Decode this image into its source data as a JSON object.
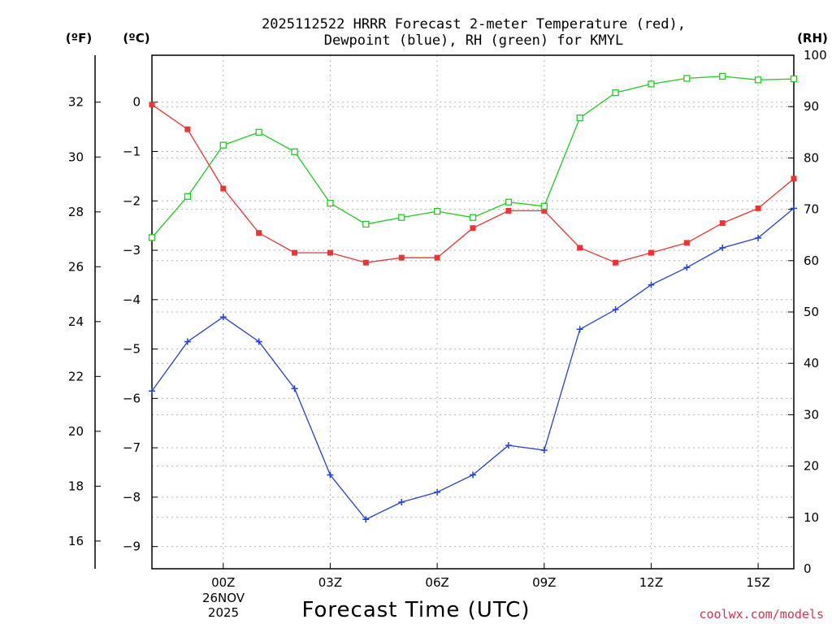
{
  "chart_data": {
    "type": "line",
    "title_line1": "2025112522 HRRR Forecast 2-meter Temperature (red),",
    "title_line2": "Dewpoint (blue), RH (green) for KMYL",
    "units": {
      "fahrenheit": "(ºF)",
      "celsius": "(ºC)",
      "rh": "(RH)"
    },
    "xlabel": "Forecast Time (UTC)",
    "x_date_label": [
      "26NOV",
      "2025"
    ],
    "credit": "coolwx.com/models",
    "x_hours": [
      -2,
      -1,
      0,
      1,
      2,
      3,
      4,
      5,
      6,
      7,
      8,
      9,
      10,
      11,
      12,
      13,
      14,
      15,
      16
    ],
    "x_range": [
      -2,
      16
    ],
    "x_ticks": [
      {
        "hour": 0,
        "label": "00Z"
      },
      {
        "hour": 3,
        "label": "03Z"
      },
      {
        "hour": 6,
        "label": "06Z"
      },
      {
        "hour": 9,
        "label": "09Z"
      },
      {
        "hour": 12,
        "label": "12Z"
      },
      {
        "hour": 15,
        "label": "15Z"
      }
    ],
    "y_celsius_range": [
      -9.45,
      0.95
    ],
    "y_celsius_ticks": [
      "0",
      "−1",
      "−2",
      "−3",
      "−4",
      "−5",
      "−6",
      "−7",
      "−8",
      "−9"
    ],
    "y_fahrenheit_ticks": [
      "32",
      "30",
      "28",
      "26",
      "24",
      "22",
      "20",
      "18",
      "16"
    ],
    "y_rh_range": [
      0,
      100
    ],
    "y_rh_ticks": [
      "100",
      "90",
      "80",
      "70",
      "60",
      "50",
      "40",
      "30",
      "20",
      "10",
      "0"
    ],
    "grid": true,
    "colors": {
      "temperature": "#ef3333",
      "dewpoint": "#2340e0",
      "rh": "#22cc22",
      "credit": "#e03050"
    },
    "series": [
      {
        "name": "Temperature",
        "axis": "celsius",
        "marker": "filled-square",
        "values": [
          -0.05,
          -0.55,
          -1.75,
          -2.65,
          -3.05,
          -3.05,
          -3.25,
          -3.15,
          -3.15,
          -2.55,
          -2.2,
          -2.2,
          -2.95,
          -3.25,
          -3.05,
          -2.85,
          -2.45,
          -2.15,
          -1.55
        ]
      },
      {
        "name": "Dewpoint",
        "axis": "celsius",
        "marker": "plus",
        "values": [
          -5.85,
          -4.85,
          -4.35,
          -4.85,
          -5.8,
          -7.55,
          -8.45,
          -8.1,
          -7.9,
          -7.55,
          -6.95,
          -7.05,
          -4.6,
          -4.2,
          -3.7,
          -3.35,
          -2.95,
          -2.75,
          -2.15
        ]
      },
      {
        "name": "RH",
        "axis": "rh",
        "marker": "open-square",
        "values": [
          64.5,
          72.5,
          82.5,
          85,
          81.2,
          71.2,
          67.1,
          68.4,
          69.6,
          68.4,
          71.4,
          70.6,
          87.8,
          92.7,
          94.4,
          95.5,
          95.9,
          95.2,
          95.4
        ]
      }
    ]
  }
}
